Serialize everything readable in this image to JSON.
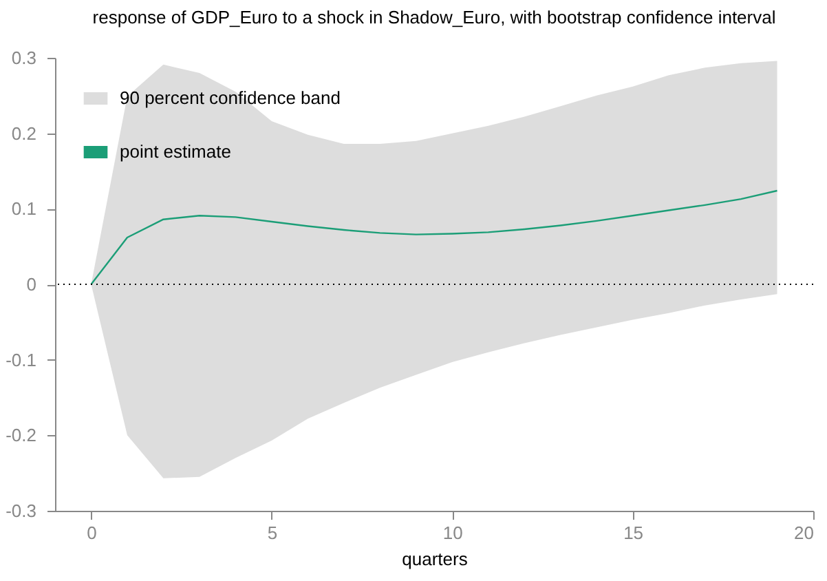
{
  "chart_data": {
    "type": "line",
    "title": "response of GDP_Euro to a shock in Shadow_Euro, with bootstrap confidence interval",
    "xlabel": "quarters",
    "x": [
      0,
      1,
      2,
      3,
      4,
      5,
      6,
      7,
      8,
      9,
      10,
      11,
      12,
      13,
      14,
      15,
      16,
      17,
      18,
      19
    ],
    "series": [
      {
        "name": "point estimate",
        "type": "line",
        "color": "#1b9e77",
        "values": [
          0,
          0.062,
          0.086,
          0.091,
          0.089,
          0.083,
          0.077,
          0.072,
          0.068,
          0.066,
          0.067,
          0.069,
          0.073,
          0.078,
          0.084,
          0.091,
          0.098,
          0.105,
          0.113,
          0.124
        ],
        "lower": [
          0,
          -0.2,
          -0.257,
          -0.255,
          -0.23,
          -0.207,
          -0.178,
          -0.157,
          -0.137,
          -0.12,
          -0.103,
          -0.09,
          -0.078,
          -0.067,
          -0.057,
          -0.047,
          -0.038,
          -0.028,
          -0.02,
          -0.013
        ],
        "upper": [
          0,
          0.249,
          0.291,
          0.28,
          0.255,
          0.216,
          0.198,
          0.186,
          0.186,
          0.19,
          0.2,
          0.21,
          0.222,
          0.236,
          0.25,
          0.262,
          0.277,
          0.287,
          0.293,
          0.296
        ]
      }
    ],
    "xlim": [
      -1,
      20
    ],
    "xticks": [
      0,
      5,
      10,
      15,
      20
    ],
    "ylim": [
      -0.3,
      0.3
    ],
    "yticks": [
      -0.3,
      -0.2,
      -0.1,
      0,
      0.1,
      0.2,
      0.3
    ],
    "ref_lines": [
      {
        "axis": "y",
        "value": 0,
        "line_style": "dotted",
        "color": "#000000"
      }
    ],
    "annotations": [
      "90 percent confidence band"
    ],
    "grid": false,
    "legend": "top left",
    "marker": "none",
    "line_style": "solid"
  }
}
